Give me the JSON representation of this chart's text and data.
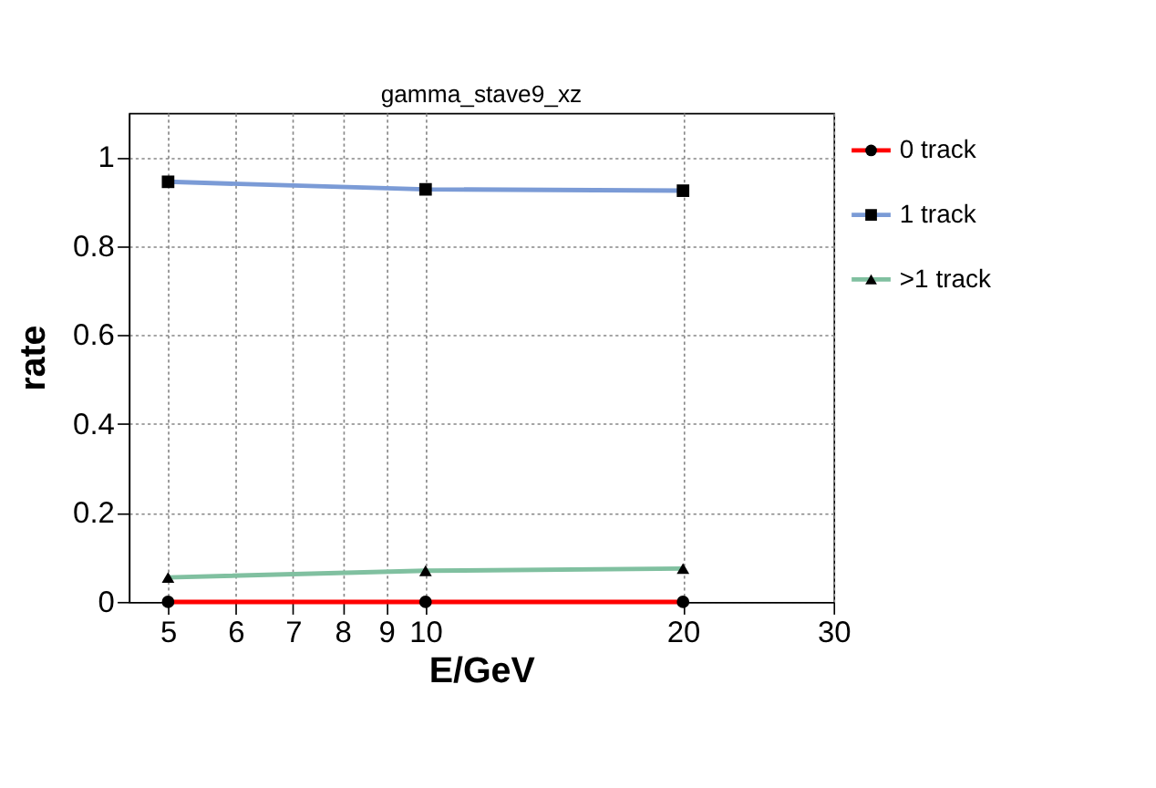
{
  "chart_data": {
    "type": "line",
    "title": "gamma_stave9_xz",
    "xlabel": "E/GeV",
    "ylabel": "rate",
    "log": "x",
    "x": [
      5,
      10,
      20
    ],
    "series": [
      {
        "name": "0 track",
        "color": "#ff0000",
        "marker": "circle",
        "values": [
          0,
          0,
          0
        ]
      },
      {
        "name": "1 track",
        "color": "#7b9bd6",
        "marker": "square",
        "values": [
          0.945,
          0.928,
          0.925
        ]
      },
      {
        "name": ">1 track",
        "color": "#80c0a0",
        "marker": "triangle",
        "values": [
          0.055,
          0.07,
          0.075
        ]
      }
    ],
    "xlim": [
      4.5,
      30
    ],
    "xticks": [
      5,
      6,
      7,
      8,
      9,
      10,
      20,
      30
    ],
    "ylim": [
      0,
      1.1
    ],
    "yticks": [
      0,
      0.2,
      0.4,
      0.6,
      0.8,
      1
    ],
    "grid": true,
    "legend": "top right",
    "line_style": "solid"
  }
}
